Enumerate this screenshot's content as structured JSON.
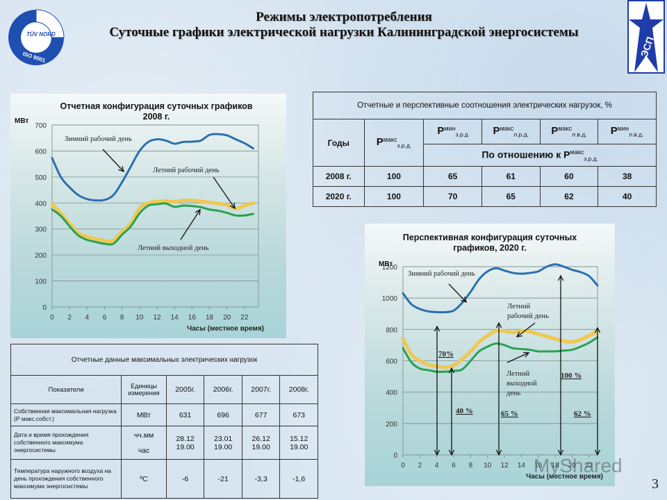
{
  "header": {
    "title_line1": "Режимы электропотребления",
    "title_line2": "Суточные графики электрической нагрузки Калининградской энергосистемы",
    "logo_left": {
      "brand": "TÜV NORD",
      "sub": "TÜV NORD CERT GmbH",
      "cert": "ISO 9001"
    },
    "logo_right": {
      "text": "ЭСП"
    }
  },
  "page_number": "3",
  "watermark": "MyShared",
  "colors": {
    "winter_workday": "#2a6fb0",
    "summer_workday": "#f0c850",
    "summer_weekend": "#2aa050",
    "logo_blue": "#1f3ca8"
  },
  "ratio_table": {
    "caption": "Отчетные и перспективные соотношения электрических нагрузок, %",
    "col_years": "Годы",
    "cols": [
      {
        "p": "P",
        "sup": "макс",
        "sub": "з.р.д."
      },
      {
        "p": "P",
        "sup": "мин",
        "sub": "з.р.д"
      },
      {
        "p": "P",
        "sup": "макс",
        "sub": "л.р.д."
      },
      {
        "p": "P",
        "sup": "макс",
        "sub": "л.в.д."
      },
      {
        "p": "P",
        "sup": "мин",
        "sub": "л.в.д."
      }
    ],
    "relative_label": "По отношению к P",
    "relative_sup": "макс",
    "relative_sub": "з.р.д.",
    "rows": [
      {
        "year": "2008 г.",
        "values": [
          "100",
          "65",
          "61",
          "60",
          "38"
        ]
      },
      {
        "year": "2020 г.",
        "values": [
          "100",
          "70",
          "65",
          "62",
          "40"
        ]
      }
    ]
  },
  "max_load_table": {
    "caption": "Отчетные данные максимальных  электрических нагрузок",
    "headers": [
      "Показатели",
      "Единицы измерения",
      "2005г.",
      "2006г.",
      "2007г.",
      "2008г."
    ],
    "rows": [
      {
        "indicator": "Собственная максимальная нагрузка (Р макс.собст.)",
        "unit": "МВт",
        "values": [
          "631",
          "696",
          "677",
          "673"
        ]
      },
      {
        "indicator": "Дата и время прохождения собственного максимума энергосистемы",
        "unit": "чч.мм",
        "unit2": "час",
        "values": [
          "28.12",
          "23.01",
          "26.12",
          "15.12"
        ],
        "values2": [
          "19.00",
          "19.00",
          "19.00",
          "19.00"
        ]
      },
      {
        "indicator": "Температура наружного воздуха на день прохождения собственного максимума энергосистемы",
        "unit": "ºC",
        "values": [
          "-6",
          "-21",
          "-3,3",
          "-1,6"
        ]
      }
    ]
  },
  "chart_data": [
    {
      "type": "line",
      "title": "Отчетная конфигурация суточных графиков 2008 г.",
      "xlabel": "Часы (местное время)",
      "ylabel": "МВт",
      "ylim": [
        0,
        700
      ],
      "yticks": [
        0,
        100,
        200,
        300,
        400,
        500,
        600,
        700
      ],
      "xticks": [
        0,
        2,
        4,
        6,
        8,
        10,
        12,
        14,
        16,
        18,
        20,
        22
      ],
      "grid": true,
      "x": [
        0,
        1,
        2,
        3,
        4,
        5,
        6,
        7,
        8,
        9,
        10,
        11,
        12,
        13,
        14,
        15,
        16,
        17,
        18,
        19,
        20,
        21,
        22,
        23
      ],
      "series": [
        {
          "name": "Зимний рабочий день",
          "values": [
            573,
            500,
            460,
            430,
            415,
            410,
            412,
            430,
            480,
            540,
            600,
            635,
            645,
            640,
            628,
            635,
            636,
            640,
            662,
            665,
            660,
            645,
            630,
            610
          ]
        },
        {
          "name": "Летний рабочий день",
          "values": [
            395,
            360,
            320,
            285,
            270,
            262,
            255,
            255,
            290,
            320,
            380,
            400,
            405,
            408,
            405,
            410,
            410,
            406,
            402,
            398,
            392,
            378,
            390,
            400
          ]
        },
        {
          "name": "Летний выходной день",
          "values": [
            375,
            350,
            310,
            275,
            258,
            250,
            243,
            243,
            278,
            310,
            360,
            390,
            395,
            398,
            385,
            390,
            388,
            384,
            375,
            370,
            362,
            352,
            352,
            358
          ]
        }
      ],
      "annotations": [
        "Зимний рабочий день",
        "Летний рабочий день",
        "Летний выходной день"
      ]
    },
    {
      "type": "line",
      "title": "Перспективная конфигурация суточных графиков, 2020 г.",
      "xlabel": "Часы (местное время)",
      "ylabel": "МВт",
      "ylim": [
        0,
        1200
      ],
      "yticks": [
        0,
        200,
        400,
        600,
        800,
        1000,
        1200
      ],
      "xticks": [
        0,
        2,
        4,
        6,
        8,
        10,
        12,
        14,
        16,
        18,
        20,
        22
      ],
      "grid": true,
      "x": [
        0,
        1,
        2,
        3,
        4,
        5,
        6,
        7,
        8,
        9,
        10,
        11,
        12,
        13,
        14,
        15,
        16,
        17,
        18,
        19,
        20,
        21,
        22,
        23
      ],
      "series": [
        {
          "name": "Зимний рабочий день",
          "values": [
            1030,
            960,
            930,
            915,
            910,
            910,
            920,
            970,
            1040,
            1120,
            1170,
            1190,
            1175,
            1160,
            1155,
            1160,
            1170,
            1200,
            1215,
            1200,
            1180,
            1165,
            1140,
            1080
          ]
        },
        {
          "name": "Летний рабочий день",
          "values": [
            740,
            640,
            600,
            575,
            565,
            560,
            570,
            610,
            660,
            720,
            760,
            790,
            790,
            780,
            790,
            785,
            770,
            755,
            740,
            725,
            720,
            735,
            760,
            790
          ]
        },
        {
          "name": "Летний выходной день",
          "values": [
            680,
            590,
            550,
            540,
            530,
            530,
            535,
            545,
            600,
            660,
            690,
            710,
            700,
            680,
            675,
            670,
            660,
            660,
            660,
            665,
            670,
            690,
            715,
            750
          ]
        }
      ],
      "annotations": [
        "Зимний рабочий день",
        "Летний рабочий день",
        "Летний выходной день",
        "70%",
        "40 %",
        "65 %",
        "100 %",
        "62 %"
      ]
    }
  ]
}
